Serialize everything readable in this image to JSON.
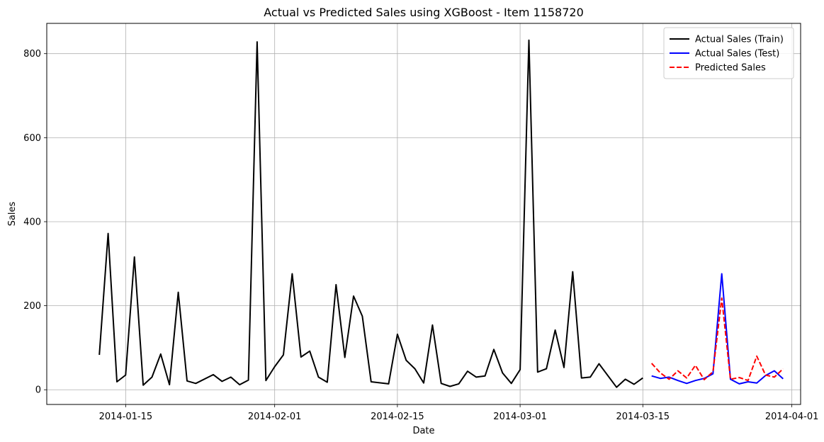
{
  "chart_data": {
    "type": "line",
    "title": "Actual vs Predicted Sales using XGBoost - Item 1158720",
    "xlabel": "Date",
    "ylabel": "Sales",
    "xlim": [
      "2014-01-06",
      "2014-04-02"
    ],
    "ylim": [
      -35,
      872
    ],
    "x_ticks": [
      "2014-01-15",
      "2014-02-01",
      "2014-02-15",
      "2014-03-01",
      "2014-03-15",
      "2014-04-01"
    ],
    "y_ticks": [
      0,
      200,
      400,
      600,
      800
    ],
    "grid": true,
    "legend_position": "top-right",
    "series": [
      {
        "name": "Actual Sales (Train)",
        "color": "#000000",
        "dash": "solid",
        "x": [
          "2014-01-12",
          "2014-01-13",
          "2014-01-14",
          "2014-01-15",
          "2014-01-16",
          "2014-01-17",
          "2014-01-18",
          "2014-01-19",
          "2014-01-20",
          "2014-01-21",
          "2014-01-22",
          "2014-01-23",
          "2014-01-25",
          "2014-01-26",
          "2014-01-27",
          "2014-01-28",
          "2014-01-29",
          "2014-01-30",
          "2014-01-31",
          "2014-02-01",
          "2014-02-02",
          "2014-02-03",
          "2014-02-04",
          "2014-02-05",
          "2014-02-06",
          "2014-02-07",
          "2014-02-08",
          "2014-02-09",
          "2014-02-10",
          "2014-02-11",
          "2014-02-12",
          "2014-02-14",
          "2014-02-15",
          "2014-02-16",
          "2014-02-17",
          "2014-02-18",
          "2014-02-19",
          "2014-02-20",
          "2014-02-21",
          "2014-02-22",
          "2014-02-23",
          "2014-02-24",
          "2014-02-25",
          "2014-02-26",
          "2014-02-27",
          "2014-02-28",
          "2014-03-01",
          "2014-03-02",
          "2014-03-03",
          "2014-03-04",
          "2014-03-05",
          "2014-03-06",
          "2014-03-07",
          "2014-03-08",
          "2014-03-09",
          "2014-03-10",
          "2014-03-12",
          "2014-03-13",
          "2014-03-14",
          "2014-03-15"
        ],
        "y": [
          83,
          372,
          19,
          35,
          316,
          11,
          30,
          85,
          12,
          232,
          21,
          15,
          36,
          20,
          30,
          12,
          23,
          828,
          22,
          55,
          83,
          276,
          78,
          92,
          30,
          18,
          250,
          77,
          223,
          175,
          19,
          14,
          132,
          70,
          50,
          16,
          154,
          15,
          8,
          14,
          44,
          30,
          33,
          96,
          40,
          15,
          48,
          832,
          42,
          50,
          142,
          53,
          281,
          28,
          30,
          62,
          6,
          25,
          13,
          28
        ]
      },
      {
        "name": "Actual Sales (Test)",
        "color": "#0000ff",
        "dash": "solid",
        "x": [
          "2014-03-16",
          "2014-03-17",
          "2014-03-18",
          "2014-03-19",
          "2014-03-20",
          "2014-03-21",
          "2014-03-22",
          "2014-03-23",
          "2014-03-24",
          "2014-03-25",
          "2014-03-26",
          "2014-03-27",
          "2014-03-28",
          "2014-03-29",
          "2014-03-30",
          "2014-03-31"
        ],
        "y": [
          33,
          27,
          30,
          22,
          15,
          22,
          27,
          38,
          276,
          25,
          14,
          19,
          16,
          34,
          45,
          26
        ]
      },
      {
        "name": "Predicted Sales",
        "color": "#ff0000",
        "dash": "dashed",
        "x": [
          "2014-03-16",
          "2014-03-17",
          "2014-03-18",
          "2014-03-19",
          "2014-03-20",
          "2014-03-21",
          "2014-03-22",
          "2014-03-23",
          "2014-03-24",
          "2014-03-25",
          "2014-03-26",
          "2014-03-27",
          "2014-03-28",
          "2014-03-29",
          "2014-03-30",
          "2014-03-31"
        ],
        "y": [
          63,
          40,
          25,
          45,
          28,
          58,
          24,
          43,
          218,
          25,
          29,
          22,
          80,
          35,
          30,
          50
        ]
      }
    ]
  }
}
